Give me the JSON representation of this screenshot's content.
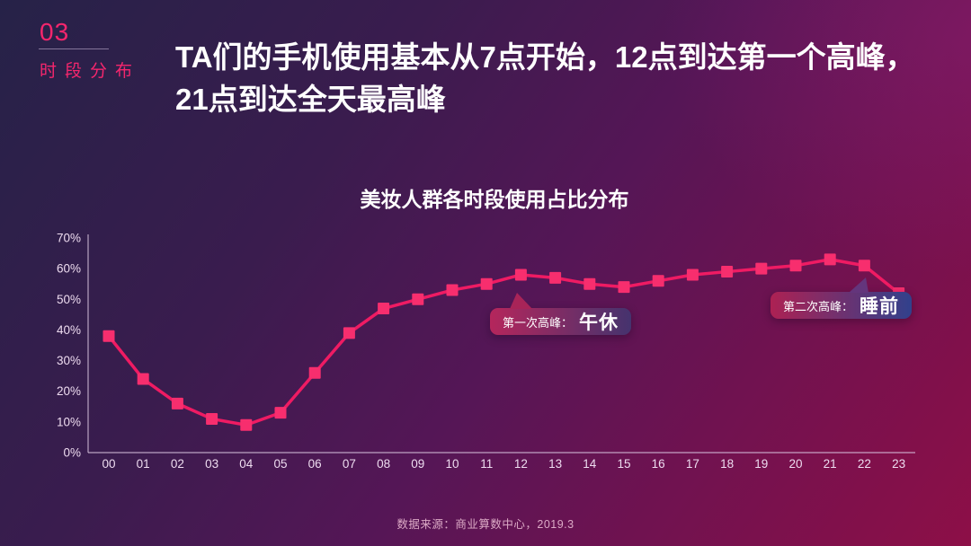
{
  "slide": {
    "section_number": "03",
    "section_label": "时段分布",
    "headline_line1": "TA们的手机使用基本从7点开始，12点到达第一个高峰，",
    "headline_line2": "21点到达全天最高峰",
    "footer_source": "数据来源：商业算数中心，2019.3"
  },
  "colors": {
    "accent_pink": "#f5266d",
    "line": "#ef1b63",
    "marker": "#f72e6e",
    "axis": "#d9c6e0",
    "axis_label": "#eedcf0",
    "bg_top_left": "#262248",
    "bg_bottom_right": "#8d0f47",
    "callout1_gradient_left": "#b5265c",
    "callout1_gradient_right": "#45336e",
    "callout2_gradient_left": "#ad2153",
    "callout2_gradient_right": "#31418c"
  },
  "chart_data": {
    "type": "line",
    "title": "美妆人群各时段使用占比分布",
    "xlabel": "",
    "ylabel": "",
    "categories": [
      "00",
      "01",
      "02",
      "03",
      "04",
      "05",
      "06",
      "07",
      "08",
      "09",
      "10",
      "11",
      "12",
      "13",
      "14",
      "15",
      "16",
      "17",
      "18",
      "19",
      "20",
      "21",
      "22",
      "23"
    ],
    "series": [
      {
        "name": "美妆人群各时段使用占比",
        "values": [
          38,
          24,
          16,
          11,
          9,
          13,
          26,
          39,
          47,
          50,
          53,
          55,
          58,
          57,
          55,
          54,
          56,
          58,
          59,
          60,
          61,
          63,
          61,
          52
        ]
      }
    ],
    "ylim": [
      0,
      70
    ],
    "ytick_step": 10,
    "ytick_labels": [
      "0%",
      "10%",
      "20%",
      "30%",
      "40%",
      "50%",
      "60%",
      "70%"
    ],
    "grid": false,
    "legend": "none",
    "marker": "square",
    "annotations": [
      {
        "prefix": "第一次高峰：",
        "label": "午休",
        "target_category": "12"
      },
      {
        "prefix": "第二次高峰：",
        "label": "睡前",
        "target_category": "21"
      }
    ]
  }
}
